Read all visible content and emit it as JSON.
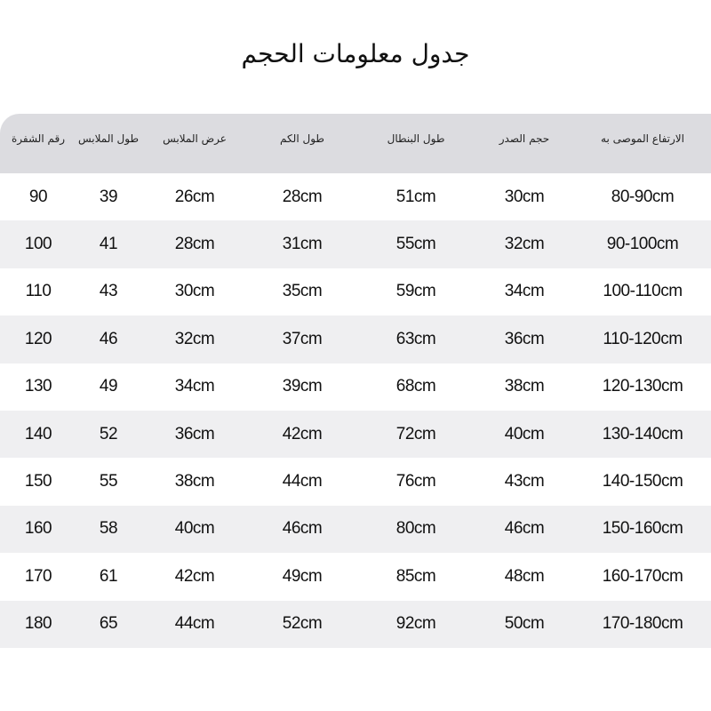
{
  "title": "جدول معلومات الحجم",
  "columns": [
    "رقم الشفرة",
    "طول الملابس",
    "عرض الملابس",
    "طول الكم",
    "طول البنطال",
    "حجم الصدر",
    "الارتفاع الموصى به"
  ],
  "rows": [
    [
      "90",
      "39",
      "26cm",
      "28cm",
      "51cm",
      "30cm",
      "80-90cm"
    ],
    [
      "100",
      "41",
      "28cm",
      "31cm",
      "55cm",
      "32cm",
      "90-100cm"
    ],
    [
      "110",
      "43",
      "30cm",
      "35cm",
      "59cm",
      "34cm",
      "100-110cm"
    ],
    [
      "120",
      "46",
      "32cm",
      "37cm",
      "63cm",
      "36cm",
      "110-120cm"
    ],
    [
      "130",
      "49",
      "34cm",
      "39cm",
      "68cm",
      "38cm",
      "120-130cm"
    ],
    [
      "140",
      "52",
      "36cm",
      "42cm",
      "72cm",
      "40cm",
      "130-140cm"
    ],
    [
      "150",
      "55",
      "38cm",
      "44cm",
      "76cm",
      "43cm",
      "140-150cm"
    ],
    [
      "160",
      "58",
      "40cm",
      "46cm",
      "80cm",
      "46cm",
      "150-160cm"
    ],
    [
      "170",
      "61",
      "42cm",
      "49cm",
      "85cm",
      "48cm",
      "160-170cm"
    ],
    [
      "180",
      "65",
      "44cm",
      "52cm",
      "92cm",
      "50cm",
      "170-180cm"
    ]
  ],
  "colors": {
    "header_bg": "#dcdce0",
    "alt_row_bg": "#efeff1"
  }
}
